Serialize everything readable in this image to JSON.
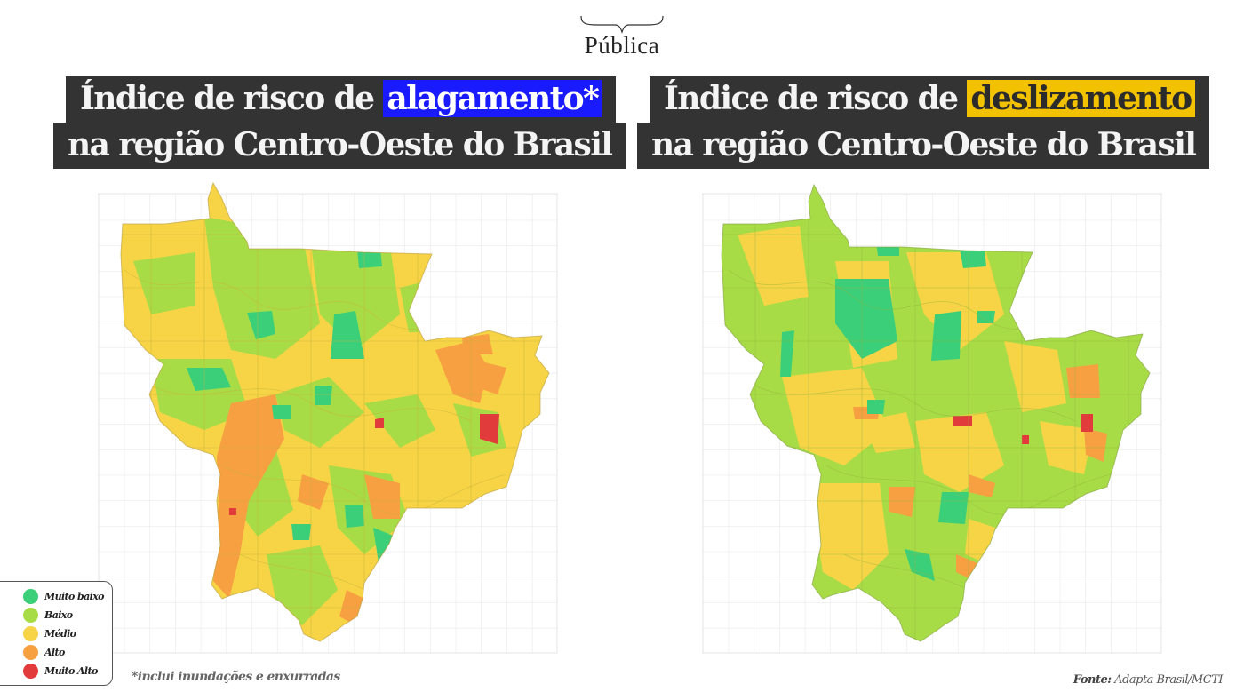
{
  "logo": {
    "text": "Pública"
  },
  "left_panel": {
    "title_line1_prefix": "Índice de risco de",
    "title_line1_highlight": "alagamento*",
    "title_line2": "na região Centro-Oeste do Brasil",
    "highlight_color": "#1a1aff"
  },
  "right_panel": {
    "title_line1_prefix": "Índice de risco de",
    "title_line1_highlight": "deslizamento",
    "title_line2": "na região Centro-Oeste do Brasil",
    "highlight_color": "#f2c200"
  },
  "legend": {
    "items": [
      {
        "label": "Muito baixo",
        "color": "#3ccf7a"
      },
      {
        "label": "Baixo",
        "color": "#a8dc46"
      },
      {
        "label": "Médio",
        "color": "#f7d446"
      },
      {
        "label": "Alto",
        "color": "#f7a042"
      },
      {
        "label": "Muito Alto",
        "color": "#e23b3b"
      }
    ]
  },
  "footnote": "*inclui inundações e enxurradas",
  "source": {
    "label": "Fonte:",
    "value": "Adapta Brasil/MCTI"
  }
}
